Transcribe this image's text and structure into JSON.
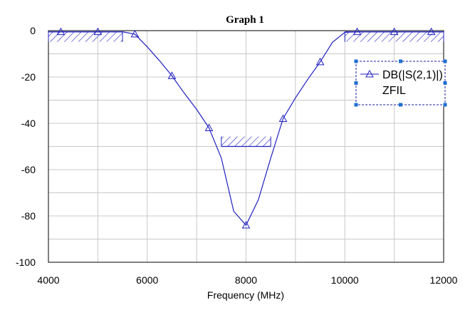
{
  "chart_data": {
    "type": "line",
    "title": "Graph 1",
    "xlabel": "Frequency (MHz)",
    "ylabel": "",
    "xlim": [
      4000,
      12000
    ],
    "ylim": [
      -100,
      0
    ],
    "xticks": [
      4000,
      6000,
      8000,
      10000,
      12000
    ],
    "yticks": [
      0,
      -20,
      -40,
      -60,
      -80,
      -100
    ],
    "grid": true,
    "legend_position": "top-right",
    "series": [
      {
        "name": "DB(|S(2,1)|)",
        "sub_label": "ZFIL",
        "color": "#2020c0",
        "marker": "triangle",
        "x": [
          4000,
          4250,
          5000,
          5500,
          5750,
          6000,
          6250,
          6500,
          6750,
          7000,
          7250,
          7500,
          7750,
          8000,
          8250,
          8500,
          8750,
          9000,
          9250,
          9500,
          9750,
          10000,
          10250,
          11000,
          11750,
          12000
        ],
        "y": [
          -0.5,
          -0.5,
          -0.5,
          -0.5,
          -1.5,
          -7,
          -13,
          -19.5,
          -27,
          -34,
          -42,
          -55,
          -78,
          -84,
          -73,
          -55,
          -38,
          -29,
          -21,
          -13.5,
          -5,
          -0.7,
          -0.5,
          -0.5,
          -0.5,
          -0.5
        ],
        "marker_x": [
          4250,
          5000,
          5750,
          6500,
          7250,
          8000,
          8750,
          9500,
          10250,
          11000,
          11750
        ],
        "marker_y": [
          -0.5,
          -0.5,
          -1.5,
          -19.5,
          -42,
          -84,
          -38,
          -13.5,
          -0.5,
          -0.5,
          -0.5
        ]
      }
    ],
    "spec_lines": [
      {
        "x": [
          4000,
          5500
        ],
        "y": -0.5,
        "hatch": "below"
      },
      {
        "x": [
          7500,
          8500
        ],
        "y": -50,
        "hatch": "above"
      },
      {
        "x": [
          10000,
          12000
        ],
        "y": -0.5,
        "hatch": "below"
      }
    ]
  }
}
